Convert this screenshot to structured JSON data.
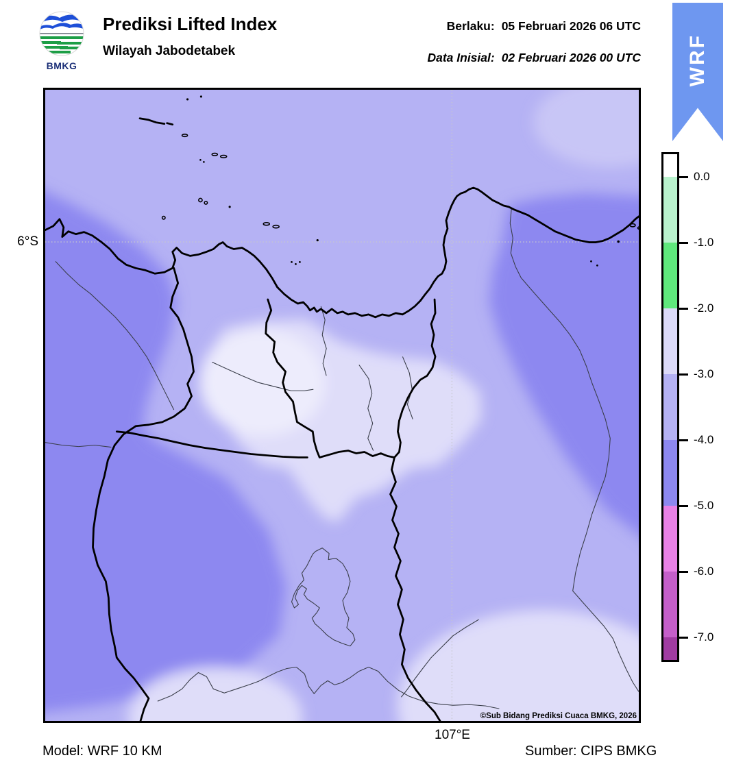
{
  "header": {
    "logo_text": "BMKG",
    "title": "Prediksi Lifted Index",
    "subtitle": "Wilayah Jabodetabek",
    "valid_label": "Berlaku:",
    "valid_value": "05 Februari 2026 06 UTC",
    "init_label": "Data Inisial:",
    "init_value": "02 Februari 2026 00 UTC",
    "ribbon_label": "WRF"
  },
  "map": {
    "lat_tick": "6°S",
    "lon_tick": "107°E",
    "copyright": "©Sub Bidang Prediksi Cuaca BMKG, 2026"
  },
  "colorbar": {
    "tick_labels": [
      "0.0",
      "-1.0",
      "-2.0",
      "-3.0",
      "-4.0",
      "-5.0",
      "-6.0",
      "-7.0"
    ],
    "segment_colors": [
      "#ffffff",
      "#b9f2cd",
      "#5fe87c",
      "#dcdaf8",
      "#b4b1f3",
      "#8d88f0",
      "#e881e6",
      "#c55fca",
      "#a03ca2"
    ],
    "segment_heights": [
      33,
      96,
      96,
      96,
      96,
      96,
      96,
      96,
      33
    ]
  },
  "footer": {
    "model": "Model: WRF 10 KM",
    "source": "Sumber: CIPS BMKG"
  },
  "colors": {
    "ribbon_blue": "#6e97f0",
    "map_background": "#b5b2f4",
    "band_light": "#dfddf9",
    "band_lightest": "#edecfc",
    "band_dark": "#8d88f0"
  }
}
